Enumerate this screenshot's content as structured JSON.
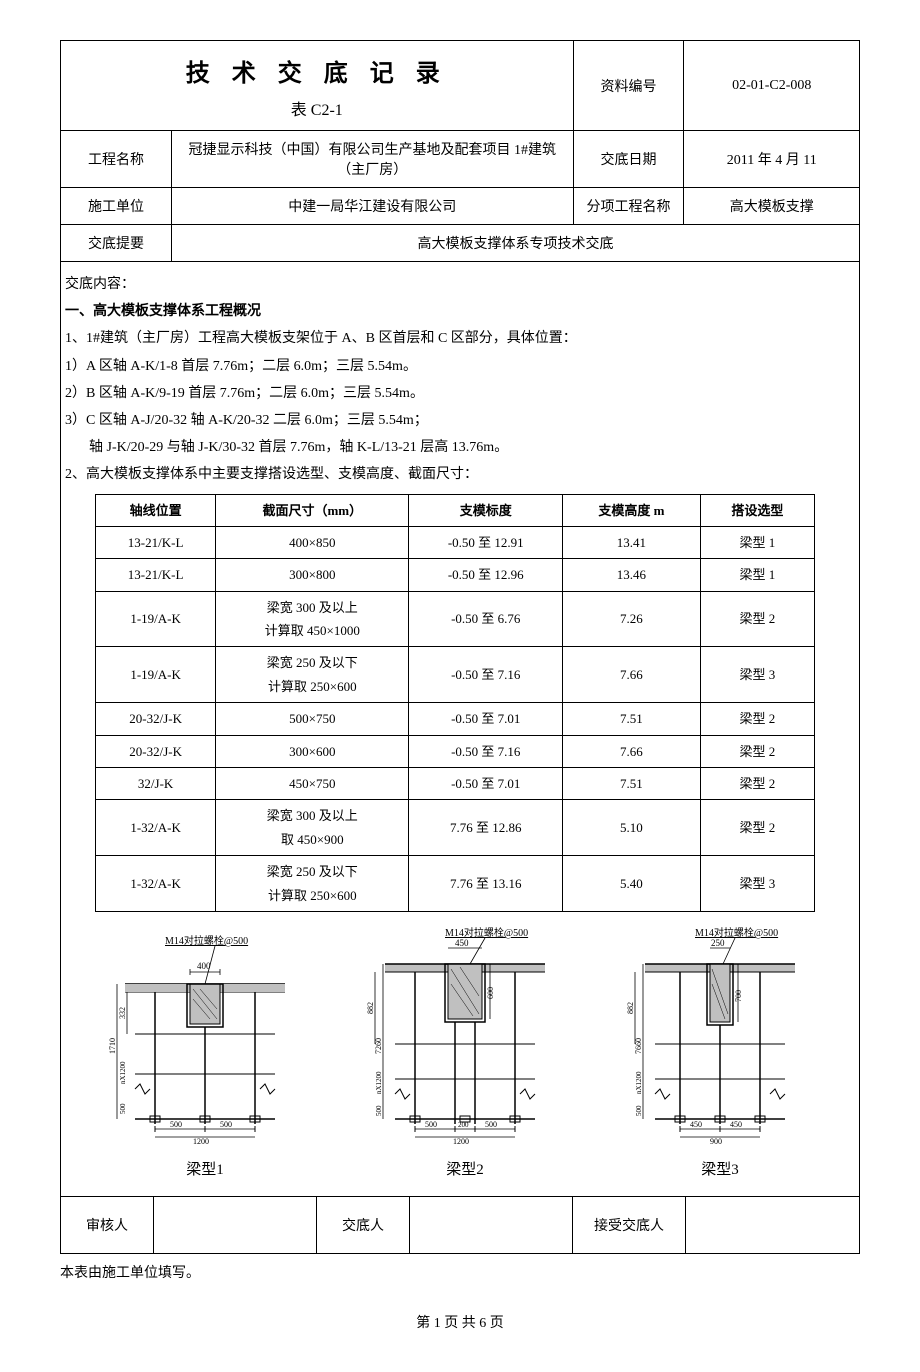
{
  "header": {
    "title": "技 术 交 底 记 录",
    "subtitle": "表 C2-1",
    "doc_num_label": "资料编号",
    "doc_num": "02-01-C2-008",
    "project_label": "工程名称",
    "project_name": "冠捷显示科技（中国）有限公司生产基地及配套项目 1#建筑（主厂房）",
    "date_label": "交底日期",
    "date_value": "2011 年 4 月 11",
    "unit_label": "施工单位",
    "unit_value": "中建一局华江建设有限公司",
    "subproject_label": "分项工程名称",
    "subproject_value": "高大模板支撑",
    "summary_label": "交底提要",
    "summary_value": "高大模板支撑体系专项技术交底"
  },
  "content": {
    "intro_label": "交底内容：",
    "section1_title": "一、高大模板支撑体系工程概况",
    "lines": {
      "l1": "1、1#建筑（主厂房）工程高大模板支架位于 A、B 区首层和 C 区部分，具体位置：",
      "l2": "1）A 区轴 A-K/1-8 首层 7.76m；二层 6.0m；三层 5.54m。",
      "l3": "2）B 区轴 A-K/9-19 首层 7.76m；二层 6.0m；三层 5.54m。",
      "l4": "3）C 区轴 A-J/20-32 轴 A-K/20-32 二层 6.0m；三层 5.54m；",
      "l5": "轴 J-K/20-29 与轴 J-K/30-32 首层 7.76m，轴 K-L/13-21 层高 13.76m。",
      "l6": "2、高大模板支撑体系中主要支撑搭设选型、支模高度、截面尺寸："
    }
  },
  "data_table": {
    "headers": [
      "轴线位置",
      "截面尺寸（mm）",
      "支模标度",
      "支模高度 m",
      "搭设选型"
    ],
    "rows": [
      [
        "13-21/K-L",
        "400×850",
        "-0.50 至 12.91",
        "13.41",
        "梁型 1"
      ],
      [
        "13-21/K-L",
        "300×800",
        "-0.50 至 12.96",
        "13.46",
        "梁型 1"
      ],
      [
        "1-19/A-K",
        "梁宽 300 及以上\n计算取 450×1000",
        "-0.50 至 6.76",
        "7.26",
        "梁型 2"
      ],
      [
        "1-19/A-K",
        "梁宽 250 及以下\n计算取 250×600",
        "-0.50 至 7.16",
        "7.66",
        "梁型 3"
      ],
      [
        "20-32/J-K",
        "500×750",
        "-0.50 至 7.01",
        "7.51",
        "梁型 2"
      ],
      [
        "20-32/J-K",
        "300×600",
        "-0.50 至 7.16",
        "7.66",
        "梁型 2"
      ],
      [
        "32/J-K",
        "450×750",
        "-0.50 至 7.01",
        "7.51",
        "梁型 2"
      ],
      [
        "1-32/A-K",
        "梁宽 300 及以上\n取 450×900",
        "7.76 至 12.86",
        "5.10",
        "梁型 2"
      ],
      [
        "1-32/A-K",
        "梁宽 250 及以下\n计算取 250×600",
        "7.76 至 13.16",
        "5.40",
        "梁型 3"
      ]
    ]
  },
  "diagrams": {
    "bolt_label": "M14对拉螺栓@500",
    "d1": {
      "label": "梁型1",
      "beam_w": "400",
      "span1": "500",
      "span2": "500",
      "span3": "500",
      "total": "1200",
      "side_h": "332",
      "total_h": "1710",
      "btm": "500",
      "n_label": "nX1200"
    },
    "d2": {
      "label": "梁型2",
      "beam_w": "450",
      "span1": "500",
      "span2": "200",
      "span3": "500",
      "total": "1200",
      "side_h": "882",
      "beam_h": "600",
      "total_h": "7260",
      "btm": "500",
      "n_label": "nX1200"
    },
    "d3": {
      "label": "梁型3",
      "beam_w": "250",
      "span1": "450",
      "span2": "450",
      "total": "900",
      "side_h": "882",
      "beam_h": "700",
      "total_h": "7660",
      "btm": "500",
      "n_label": "nX1200"
    }
  },
  "footer": {
    "reviewer_label": "审核人",
    "disclose_label": "交底人",
    "receiver_label": "接受交底人",
    "note": "本表由施工单位填写。",
    "page": "第 1 页 共 6 页"
  },
  "colors": {
    "border": "#000000",
    "text": "#000000",
    "bg": "#ffffff",
    "diagram_fill": "#c0c0c0"
  }
}
